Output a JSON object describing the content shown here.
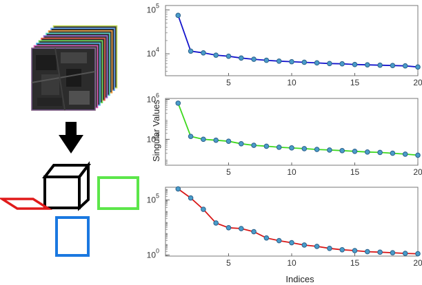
{
  "figure": {
    "illustration": {
      "cube_layer_colors": [
        "#e8d84a",
        "#d957b8",
        "#4fb8e8",
        "#6ddc5a",
        "#e85a4a",
        "#9a6ad8",
        "#58d8c8",
        "#f0a040",
        "#60a0f0",
        "#c0d850"
      ],
      "arrow_color": "#000000",
      "mode_colors": {
        "cube": "#000000",
        "front": "#e01a1a",
        "middle": "#5ce64a",
        "bottom": "#1a78e0"
      }
    },
    "colors": {
      "marker_fill": "#4a9cc9",
      "marker_stroke": "#2a5f8a"
    }
  },
  "chart_data": [
    {
      "type": "line",
      "title": "",
      "xlabel": "",
      "ylabel": "",
      "yscale": "log",
      "xlim": [
        0,
        20
      ],
      "ylim_exp": [
        3.5,
        5.1
      ],
      "xticks": [
        5,
        10,
        15,
        20
      ],
      "xtick_labels": [
        "5",
        "10",
        "15",
        "20"
      ],
      "ytick_exps": [
        4,
        5
      ],
      "ytick_labels": [
        {
          "base": "10",
          "exp": "4"
        },
        {
          "base": "10",
          "exp": "5"
        }
      ],
      "line_color": "#1414cc",
      "series": [
        {
          "x": [
            1,
            2,
            3,
            4,
            5,
            6,
            7,
            8,
            9,
            10,
            11,
            12,
            13,
            14,
            15,
            16,
            17,
            18,
            19,
            20
          ],
          "values": [
            75000,
            11500,
            10500,
            9300,
            8800,
            8000,
            7500,
            7100,
            6800,
            6600,
            6400,
            6200,
            6000,
            5900,
            5700,
            5600,
            5500,
            5400,
            5300,
            5000
          ]
        }
      ]
    },
    {
      "type": "line",
      "title": "",
      "xlabel": "",
      "ylabel": "Singular Values",
      "yscale": "log",
      "xlim": [
        0,
        20
      ],
      "ylim_exp": [
        2.7,
        6.05
      ],
      "xticks": [
        5,
        10,
        15,
        20
      ],
      "xtick_labels": [
        "5",
        "10",
        "15",
        "20"
      ],
      "ytick_exps": [
        4,
        6
      ],
      "ytick_labels": [
        {
          "base": "10",
          "exp": "4"
        },
        {
          "base": "10",
          "exp": "6"
        }
      ],
      "line_color": "#3ed81e",
      "series": [
        {
          "x": [
            1,
            2,
            3,
            4,
            5,
            6,
            7,
            8,
            9,
            10,
            11,
            12,
            13,
            14,
            15,
            16,
            17,
            18,
            19,
            20
          ],
          "values": [
            650000,
            14000,
            10000,
            9000,
            8000,
            6000,
            5000,
            4500,
            4000,
            3700,
            3400,
            3100,
            2900,
            2700,
            2500,
            2300,
            2200,
            2000,
            1800,
            1600
          ]
        }
      ]
    },
    {
      "type": "line",
      "title": "",
      "xlabel": "Indices",
      "ylabel": "",
      "yscale": "log",
      "xlim": [
        0,
        20
      ],
      "ylim_exp": [
        -0.1,
        6.15
      ],
      "xticks": [
        5,
        10,
        15,
        20
      ],
      "xtick_labels": [
        "5",
        "10",
        "15",
        "20"
      ],
      "ytick_exps": [
        0,
        5
      ],
      "ytick_labels": [
        {
          "base": "10",
          "exp": "0"
        },
        {
          "base": "10",
          "exp": "5"
        }
      ],
      "line_color": "#d81818",
      "series": [
        {
          "x": [
            1,
            2,
            3,
            4,
            5,
            6,
            7,
            8,
            9,
            10,
            11,
            12,
            13,
            14,
            15,
            16,
            17,
            18,
            19,
            20
          ],
          "values": [
            1000000,
            150000,
            14000,
            800,
            300,
            250,
            130,
            35,
            20,
            13,
            8,
            6,
            4,
            3,
            2.5,
            2,
            1.8,
            1.6,
            1.4,
            1.3
          ]
        }
      ]
    }
  ]
}
